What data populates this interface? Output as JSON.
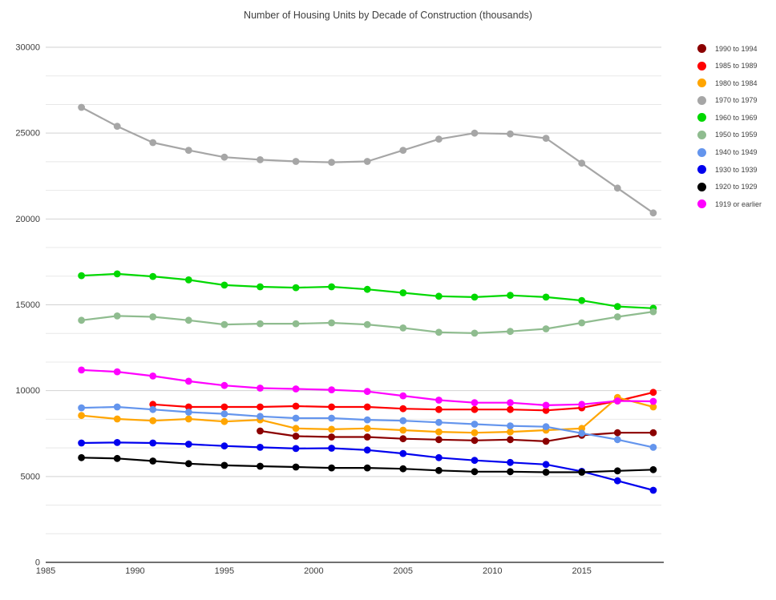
{
  "chart_data": {
    "type": "line",
    "title": "Number of Housing Units by Decade of Construction (thousands)",
    "x": [
      1987,
      1989,
      1991,
      1993,
      1995,
      1997,
      1999,
      2001,
      2003,
      2005,
      2007,
      2009,
      2011,
      2013,
      2015,
      2017,
      2019
    ],
    "x_axis": {
      "min": 1985,
      "max": 2020,
      "ticks": [
        1985,
        1990,
        1995,
        2000,
        2005,
        2010,
        2015
      ]
    },
    "y_axis": {
      "min": 0,
      "max": 30000,
      "ticks": [
        0,
        5000,
        10000,
        15000,
        20000,
        25000,
        30000
      ],
      "minor_divisions_per_interval": 3
    },
    "grid": true,
    "legend_position": "right",
    "series": [
      {
        "name": "1990 to 1994",
        "color": "#8B0000",
        "values": [
          null,
          null,
          null,
          null,
          null,
          7650,
          7350,
          7300,
          7300,
          7200,
          7150,
          7100,
          7150,
          7050,
          7400,
          7550,
          7550
        ]
      },
      {
        "name": "1985 to 1989",
        "color": "#FF0000",
        "values": [
          null,
          null,
          9200,
          9050,
          9050,
          9050,
          9100,
          9050,
          9050,
          8950,
          8900,
          8900,
          8900,
          8850,
          9000,
          9400,
          9900
        ]
      },
      {
        "name": "1980 to 1984",
        "color": "#FFA500",
        "values": [
          8550,
          8350,
          8250,
          8350,
          8200,
          8300,
          7800,
          7750,
          7800,
          7700,
          7600,
          7550,
          7600,
          7700,
          7800,
          9600,
          9050
        ]
      },
      {
        "name": "1970 to 1979",
        "color": "#A6A6A6",
        "values": [
          26500,
          25400,
          24450,
          24000,
          23600,
          23450,
          23350,
          23300,
          23350,
          24000,
          24650,
          25000,
          24950,
          24700,
          23250,
          21800,
          20350
        ]
      },
      {
        "name": "1960 to 1969",
        "color": "#00D800",
        "values": [
          16700,
          16800,
          16650,
          16450,
          16150,
          16050,
          16000,
          16050,
          15900,
          15700,
          15500,
          15450,
          15550,
          15450,
          15250,
          14900,
          14800
        ]
      },
      {
        "name": "1950 to 1959",
        "color": "#8FBC8F",
        "values": [
          14100,
          14350,
          14300,
          14100,
          13850,
          13900,
          13900,
          13950,
          13850,
          13650,
          13400,
          13350,
          13450,
          13600,
          13950,
          14300,
          14600
        ]
      },
      {
        "name": "1940 to 1949",
        "color": "#6495ED",
        "values": [
          9000,
          9050,
          8900,
          8750,
          8650,
          8500,
          8400,
          8400,
          8300,
          8250,
          8150,
          8050,
          7950,
          7900,
          7520,
          7150,
          6700
        ]
      },
      {
        "name": "1930 to 1939",
        "color": "#0000EE",
        "values": [
          6950,
          6980,
          6950,
          6880,
          6780,
          6700,
          6630,
          6650,
          6540,
          6340,
          6100,
          5940,
          5820,
          5700,
          5300,
          4750,
          4200
        ]
      },
      {
        "name": "1920 to 1929",
        "color": "#000000",
        "values": [
          6100,
          6050,
          5900,
          5750,
          5650,
          5600,
          5550,
          5500,
          5500,
          5450,
          5350,
          5280,
          5280,
          5250,
          5250,
          5330,
          5400
        ]
      },
      {
        "name": "1919 or earlier",
        "color": "#FF00FF",
        "values": [
          11200,
          11100,
          10850,
          10550,
          10300,
          10150,
          10100,
          10050,
          9950,
          9700,
          9450,
          9300,
          9300,
          9150,
          9200,
          9400,
          9380
        ]
      }
    ],
    "colors": {
      "grid_minor": "#E8E8E8",
      "grid_major": "#D2D2D2",
      "axis_line": "#404040",
      "tick_label": "#3d3d3d"
    }
  }
}
